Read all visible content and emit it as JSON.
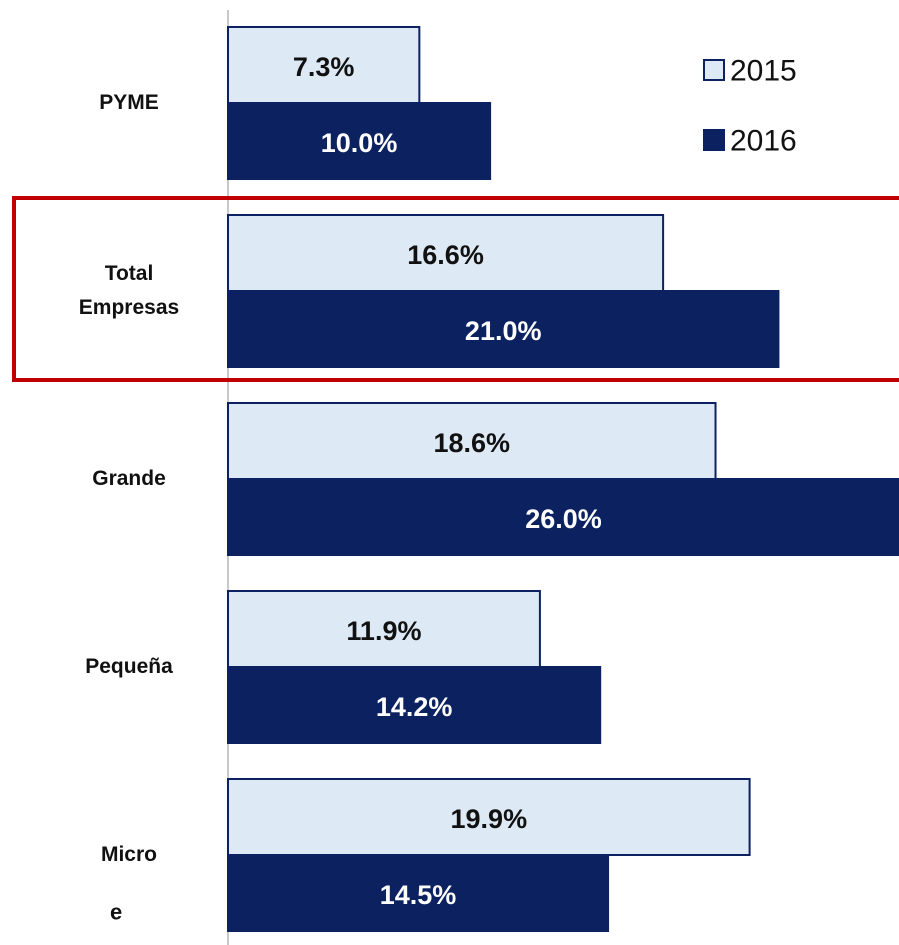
{
  "chart_data": {
    "type": "bar",
    "orientation": "horizontal",
    "categories": [
      "PYME",
      "Total Empresas",
      "Grande",
      "Pequeña",
      "Micro"
    ],
    "series": [
      {
        "name": "2015",
        "color": "#dde9f5",
        "values": [
          7.3,
          16.6,
          18.6,
          11.9,
          19.9
        ],
        "value_labels": [
          "7.3%",
          "16.6%",
          "18.6%",
          "11.9%",
          "19.9%"
        ]
      },
      {
        "name": "2016",
        "color": "#0c2260",
        "values": [
          10.0,
          21.0,
          26.0,
          14.2,
          14.5
        ],
        "value_labels": [
          "10.0%",
          "21.0%",
          "26.0%",
          "14.2%",
          "14.5%"
        ]
      }
    ],
    "xlim": [
      0,
      25.6
    ],
    "legend": "top-right",
    "annotation": "e"
  }
}
